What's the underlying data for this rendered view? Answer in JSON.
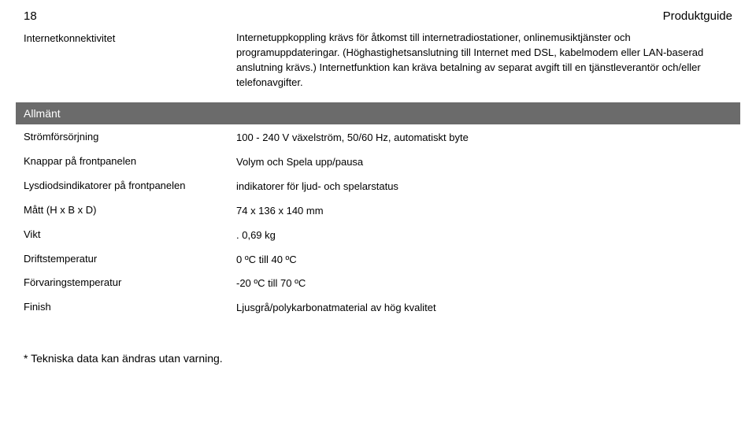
{
  "header": {
    "page_number": "18",
    "title": "Produktguide"
  },
  "connectivity": {
    "label": "Internetkonnektivitet",
    "value": "Internetuppkoppling krävs för åtkomst till internetradiostationer, onlinemusiktjänster och programuppdateringar. (Höghastighetsanslutning till Internet med DSL, kabelmodem eller LAN-baserad anslutning krävs.) Internetfunktion kan kräva betalning av separat avgift till en tjänstleverantör och/eller telefonavgifter."
  },
  "section_general": "Allmänt",
  "specs": [
    {
      "label": "Strömförsörjning",
      "value": "100 - 240 V växelström, 50/60 Hz, automatiskt byte"
    },
    {
      "label": "Knappar på frontpanelen",
      "value": "Volym och Spela upp/pausa"
    },
    {
      "label": "Lysdiodsindikatorer på frontpanelen",
      "value": "indikatorer för ljud- och spelarstatus"
    },
    {
      "label": "Mått (H x B x D)",
      "value": "74 x 136 x 140 mm"
    },
    {
      "label": "Vikt",
      "value": ". 0,69 kg"
    },
    {
      "label": "Driftstemperatur",
      "value": "0 ºC till 40 ºC"
    },
    {
      "label": "Förvaringstemperatur",
      "value": "-20 ºC till 70 ºC"
    },
    {
      "label": "Finish",
      "value": "Ljusgrå/polykarbonatmaterial av hög kvalitet"
    }
  ],
  "footnote": "* Tekniska data kan ändras utan varning."
}
